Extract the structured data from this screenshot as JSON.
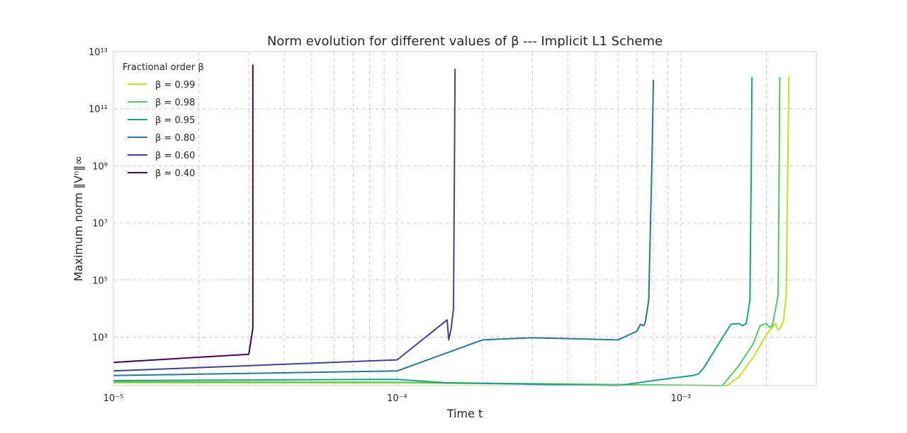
{
  "chart_data": {
    "type": "line",
    "title": "Norm evolution for different values of β --- Implicit L1 Scheme",
    "xlabel": "Time t",
    "ylabel": "Maximum norm ‖Vⁿ‖∞",
    "xscale": "log",
    "yscale": "log",
    "xlim": [
      1e-05,
      0.003
    ],
    "ylim": [
      20,
      10000000000000.0
    ],
    "xticks": [
      {
        "value": 1e-05,
        "label": "10⁻⁵"
      },
      {
        "value": 0.0001,
        "label": "10⁻⁴"
      },
      {
        "value": 0.001,
        "label": "10⁻³"
      }
    ],
    "yticks": [
      {
        "value": 1000,
        "label": "10³"
      },
      {
        "value": 100000,
        "label": "10⁵"
      },
      {
        "value": 10000000,
        "label": "10⁷"
      },
      {
        "value": 1000000000,
        "label": "10⁹"
      },
      {
        "value": 100000000000,
        "label": "10¹¹"
      },
      {
        "value": 10000000000000,
        "label": "10¹³"
      }
    ],
    "grid": true,
    "legend": {
      "title": "Fractional order β",
      "placement": "top-left"
    },
    "series": [
      {
        "name": "β = 0.99",
        "color": "#c2df23",
        "points": [
          [
            1e-05,
            25
          ],
          [
            0.0001,
            25
          ],
          [
            0.00145,
            20
          ],
          [
            0.0016,
            40
          ],
          [
            0.0018,
            200
          ],
          [
            0.002,
            1200
          ],
          [
            0.00215,
            3000
          ],
          [
            0.0022,
            1800
          ],
          [
            0.00225,
            2200
          ],
          [
            0.0023,
            4000
          ],
          [
            0.00235,
            30000
          ],
          [
            0.00238,
            1000000000.0
          ],
          [
            0.0024,
            1300000000000.0
          ]
        ]
      },
      {
        "name": "β = 0.98",
        "color": "#52c569",
        "points": [
          [
            1e-05,
            27
          ],
          [
            0.0001,
            26
          ],
          [
            0.0014,
            20
          ],
          [
            0.0016,
            100
          ],
          [
            0.0018,
            600
          ],
          [
            0.0019,
            2500
          ],
          [
            0.002,
            3000
          ],
          [
            0.00205,
            2200
          ],
          [
            0.0021,
            2500
          ],
          [
            0.0022,
            30000
          ],
          [
            0.00222,
            1000000000.0
          ],
          [
            0.00223,
            1300000000000.0
          ]
        ]
      },
      {
        "name": "β = 0.95",
        "color": "#1f9e89",
        "points": [
          [
            1e-05,
            30
          ],
          [
            0.0001,
            33
          ],
          [
            0.00015,
            25
          ],
          [
            0.0006,
            20
          ],
          [
            0.0008,
            30
          ],
          [
            0.0011,
            45
          ],
          [
            0.00115,
            50
          ],
          [
            0.0012,
            80
          ],
          [
            0.0015,
            2800
          ],
          [
            0.0016,
            3000
          ],
          [
            0.00165,
            2500
          ],
          [
            0.0017,
            3000
          ],
          [
            0.00175,
            20000
          ],
          [
            0.00177,
            1000000000.0
          ],
          [
            0.00178,
            1300000000000.0
          ]
        ]
      },
      {
        "name": "β = 0.80",
        "color": "#2a788e",
        "points": [
          [
            1e-05,
            45
          ],
          [
            0.0001,
            65
          ],
          [
            0.0002,
            800
          ],
          [
            0.0003,
            950
          ],
          [
            0.0006,
            800
          ],
          [
            0.0007,
            1600
          ],
          [
            0.00072,
            2800
          ],
          [
            0.00074,
            2500
          ],
          [
            0.00075,
            3500
          ],
          [
            0.00077,
            20000
          ],
          [
            0.00079,
            1000000000.0
          ],
          [
            0.0008,
            1000000000000.0
          ]
        ]
      },
      {
        "name": "β = 0.60",
        "color": "#414487",
        "points": [
          [
            1e-05,
            65
          ],
          [
            0.0001,
            160
          ],
          [
            0.00015,
            4000
          ],
          [
            0.000152,
            800
          ],
          [
            0.000155,
            2000
          ],
          [
            0.000158,
            10000
          ],
          [
            0.00016,
            2500000000000.0
          ]
        ]
      },
      {
        "name": "β = 0.40",
        "color": "#440154",
        "points": [
          [
            1e-05,
            130
          ],
          [
            3e-05,
            250
          ],
          [
            3.1e-05,
            2000
          ],
          [
            3.1e-05,
            1000000000.0
          ],
          [
            3.1e-05,
            3500000000000.0
          ]
        ]
      }
    ]
  }
}
